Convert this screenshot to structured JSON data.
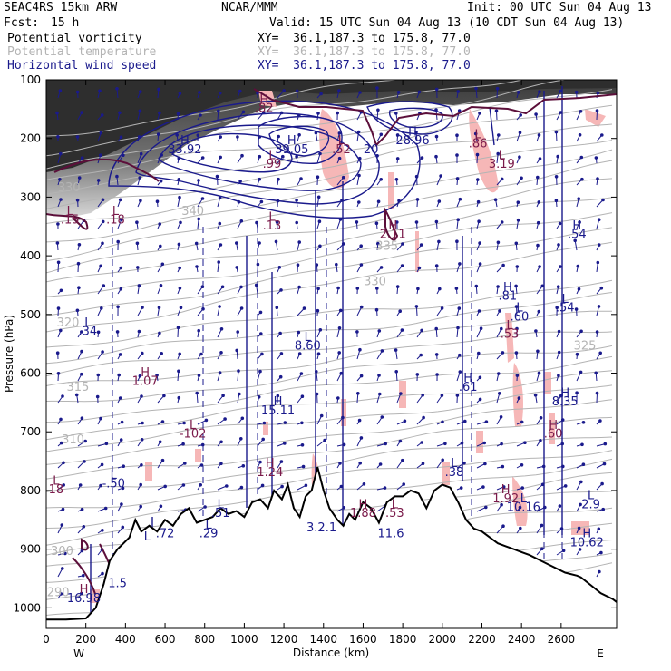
{
  "header": {
    "model": "SEAC4RS 15km ARW",
    "org": "NCAR/MMM",
    "init": "Init: 00 UTC Sun 04 Aug 13",
    "fcst_label": "Fcst:",
    "fcst_value": "15 h",
    "valid": "Valid: 15 UTC Sun 04 Aug 13 (10 CDT Sun 04 Aug 13)"
  },
  "legend": [
    {
      "label": "Potential vorticity",
      "xy": "XY=  36.1,187.3 to 175.8, 77.0",
      "color": "#000000"
    },
    {
      "label": "Potential temperature",
      "xy": "XY=  36.1,187.3 to 175.8, 77.0",
      "color": "#b4b4b4"
    },
    {
      "label": "Horizontal wind speed",
      "xy": "XY=  36.1,187.3 to 175.8, 77.0",
      "color": "#1a1a8c"
    }
  ],
  "chart_data": {
    "type": "cross-section",
    "xlabel": "Distance (km)",
    "ylabel": "Pressure (hPa)",
    "xlim": [
      0,
      2880
    ],
    "ylim": [
      1035,
      100
    ],
    "x_ticks": [
      0,
      200,
      400,
      600,
      800,
      1000,
      1200,
      1400,
      1600,
      1800,
      2000,
      2200,
      2400,
      2600
    ],
    "y_ticks": [
      100,
      200,
      300,
      400,
      500,
      600,
      700,
      800,
      900,
      1000
    ],
    "x_end_labels": {
      "left": "W",
      "right": "E"
    },
    "terrain": [
      [
        0,
        1020
      ],
      [
        100,
        1020
      ],
      [
        200,
        1018
      ],
      [
        250,
        1000
      ],
      [
        290,
        960
      ],
      [
        320,
        920
      ],
      [
        360,
        900
      ],
      [
        390,
        890
      ],
      [
        420,
        880
      ],
      [
        450,
        850
      ],
      [
        480,
        870
      ],
      [
        520,
        860
      ],
      [
        560,
        870
      ],
      [
        600,
        850
      ],
      [
        640,
        860
      ],
      [
        680,
        840
      ],
      [
        720,
        830
      ],
      [
        760,
        855
      ],
      [
        800,
        850
      ],
      [
        840,
        845
      ],
      [
        880,
        830
      ],
      [
        920,
        840
      ],
      [
        960,
        835
      ],
      [
        1000,
        845
      ],
      [
        1040,
        820
      ],
      [
        1080,
        815
      ],
      [
        1120,
        830
      ],
      [
        1150,
        800
      ],
      [
        1190,
        815
      ],
      [
        1220,
        790
      ],
      [
        1250,
        830
      ],
      [
        1280,
        845
      ],
      [
        1310,
        810
      ],
      [
        1340,
        800
      ],
      [
        1370,
        760
      ],
      [
        1400,
        800
      ],
      [
        1430,
        830
      ],
      [
        1470,
        850
      ],
      [
        1500,
        860
      ],
      [
        1530,
        840
      ],
      [
        1560,
        850
      ],
      [
        1600,
        820
      ],
      [
        1640,
        830
      ],
      [
        1680,
        855
      ],
      [
        1720,
        820
      ],
      [
        1760,
        810
      ],
      [
        1800,
        810
      ],
      [
        1840,
        800
      ],
      [
        1880,
        805
      ],
      [
        1920,
        830
      ],
      [
        1960,
        800
      ],
      [
        2000,
        790
      ],
      [
        2040,
        795
      ],
      [
        2080,
        820
      ],
      [
        2120,
        850
      ],
      [
        2160,
        865
      ],
      [
        2200,
        870
      ],
      [
        2240,
        880
      ],
      [
        2280,
        890
      ],
      [
        2320,
        895
      ],
      [
        2360,
        900
      ],
      [
        2400,
        905
      ],
      [
        2440,
        910
      ],
      [
        2500,
        920
      ],
      [
        2560,
        930
      ],
      [
        2620,
        940
      ],
      [
        2680,
        945
      ],
      [
        2700,
        948
      ],
      [
        2745,
        960
      ],
      [
        2800,
        975
      ],
      [
        2860,
        985
      ],
      [
        2880,
        990
      ]
    ],
    "theta_labels": [
      {
        "x": 115,
        "p": 290,
        "text": "330"
      },
      {
        "x": 740,
        "p": 330,
        "text": "340"
      },
      {
        "x": 1660,
        "p": 450,
        "text": "330"
      },
      {
        "x": 1720,
        "p": 390,
        "text": "335"
      },
      {
        "x": 110,
        "p": 520,
        "text": "320"
      },
      {
        "x": 160,
        "p": 630,
        "text": "315"
      },
      {
        "x": 2720,
        "p": 560,
        "text": "325"
      },
      {
        "x": 135,
        "p": 720,
        "text": "310"
      },
      {
        "x": 80,
        "p": 910,
        "text": "300"
      },
      {
        "x": 60,
        "p": 980,
        "text": "290"
      }
    ],
    "labels": [
      {
        "x": 1100,
        "p": 140,
        "text": "H",
        "color": "#7a1a4a"
      },
      {
        "x": 1100,
        "p": 155,
        "text": ".82",
        "color": "#7a1a4a"
      },
      {
        "x": 700,
        "p": 210,
        "text": "H",
        "color": "#1a1a8c"
      },
      {
        "x": 700,
        "p": 225,
        "text": "33.92",
        "color": "#1a1a8c"
      },
      {
        "x": 1240,
        "p": 210,
        "text": "H",
        "color": "#1a1a8c"
      },
      {
        "x": 1240,
        "p": 225,
        "text": "39.05",
        "color": "#1a1a8c"
      },
      {
        "x": 1850,
        "p": 195,
        "text": "H",
        "color": "#1a1a8c"
      },
      {
        "x": 1850,
        "p": 210,
        "text": "28.96",
        "color": "#1a1a8c"
      },
      {
        "x": 2180,
        "p": 200,
        "text": "L",
        "color": "#7a1a4a"
      },
      {
        "x": 2180,
        "p": 215,
        "text": ".86",
        "color": "#7a1a4a"
      },
      {
        "x": 2300,
        "p": 235,
        "text": "L",
        "color": "#7a1a4a"
      },
      {
        "x": 2300,
        "p": 250,
        "text": "3.19",
        "color": "#7a1a4a"
      },
      {
        "x": 1490,
        "p": 210,
        "text": "L",
        "color": "#7a1a4a"
      },
      {
        "x": 1490,
        "p": 225,
        "text": ".52",
        "color": "#7a1a4a"
      },
      {
        "x": 1640,
        "p": 225,
        "text": "20",
        "color": "#1a1a8c"
      },
      {
        "x": 1140,
        "p": 235,
        "text": "L",
        "color": "#7a1a4a"
      },
      {
        "x": 1140,
        "p": 250,
        "text": ".99",
        "color": "#7a1a4a"
      },
      {
        "x": 120,
        "p": 330,
        "text": "L",
        "color": "#7a1a4a"
      },
      {
        "x": 120,
        "p": 345,
        "text": ".15",
        "color": "#7a1a4a"
      },
      {
        "x": 350,
        "p": 330,
        "text": "L",
        "color": "#7a1a4a"
      },
      {
        "x": 350,
        "p": 345,
        "text": ".18",
        "color": "#7a1a4a"
      },
      {
        "x": 1140,
        "p": 340,
        "text": "L",
        "color": "#7a1a4a"
      },
      {
        "x": 1140,
        "p": 355,
        "text": ".13",
        "color": "#7a1a4a"
      },
      {
        "x": 1750,
        "p": 355,
        "text": "H",
        "color": "#7a1a4a"
      },
      {
        "x": 1750,
        "p": 370,
        "text": "2.11",
        "color": "#7a1a4a"
      },
      {
        "x": 2680,
        "p": 355,
        "text": "H",
        "color": "#1a1a8c"
      },
      {
        "x": 2680,
        "p": 370,
        "text": ".54",
        "color": "#1a1a8c"
      },
      {
        "x": 2330,
        "p": 460,
        "text": "H",
        "color": "#1a1a8c"
      },
      {
        "x": 2330,
        "p": 475,
        "text": ".81",
        "color": "#1a1a8c"
      },
      {
        "x": 2620,
        "p": 480,
        "text": "L",
        "color": "#1a1a8c"
      },
      {
        "x": 2620,
        "p": 495,
        "text": ".54",
        "color": "#1a1a8c"
      },
      {
        "x": 2390,
        "p": 495,
        "text": "L",
        "color": "#1a1a8c"
      },
      {
        "x": 2390,
        "p": 510,
        "text": ".60",
        "color": "#1a1a8c"
      },
      {
        "x": 2340,
        "p": 525,
        "text": "L",
        "color": "#7a1a4a"
      },
      {
        "x": 2340,
        "p": 540,
        "text": ".53",
        "color": "#7a1a4a"
      },
      {
        "x": 210,
        "p": 520,
        "text": "L",
        "color": "#1a1a8c"
      },
      {
        "x": 210,
        "p": 535,
        "text": ".34",
        "color": "#1a1a8c"
      },
      {
        "x": 1320,
        "p": 545,
        "text": "L",
        "color": "#1a1a8c"
      },
      {
        "x": 1320,
        "p": 560,
        "text": "8.60",
        "color": "#1a1a8c"
      },
      {
        "x": 500,
        "p": 605,
        "text": "H",
        "color": "#7a1a4a"
      },
      {
        "x": 500,
        "p": 620,
        "text": "1.07",
        "color": "#7a1a4a"
      },
      {
        "x": 2130,
        "p": 615,
        "text": "H",
        "color": "#1a1a8c"
      },
      {
        "x": 2130,
        "p": 630,
        "text": ".61",
        "color": "#1a1a8c"
      },
      {
        "x": 2620,
        "p": 640,
        "text": "H",
        "color": "#1a1a8c"
      },
      {
        "x": 2620,
        "p": 655,
        "text": "8.35",
        "color": "#1a1a8c"
      },
      {
        "x": 1170,
        "p": 655,
        "text": "H",
        "color": "#1a1a8c"
      },
      {
        "x": 1170,
        "p": 670,
        "text": "15.11",
        "color": "#1a1a8c"
      },
      {
        "x": 740,
        "p": 695,
        "text": "L",
        "color": "#7a1a4a"
      },
      {
        "x": 740,
        "p": 710,
        "text": "-102",
        "color": "#7a1a4a"
      },
      {
        "x": 2560,
        "p": 695,
        "text": "H",
        "color": "#7a1a4a"
      },
      {
        "x": 2560,
        "p": 710,
        "text": ".60",
        "color": "#7a1a4a"
      },
      {
        "x": 1130,
        "p": 760,
        "text": "H",
        "color": "#7a1a4a"
      },
      {
        "x": 1130,
        "p": 775,
        "text": "1.24",
        "color": "#7a1a4a"
      },
      {
        "x": 2060,
        "p": 760,
        "text": "L",
        "color": "#1a1a8c"
      },
      {
        "x": 2060,
        "p": 775,
        "text": ".38",
        "color": "#1a1a8c"
      },
      {
        "x": 340,
        "p": 780,
        "text": "L",
        "color": "#1a1a8c"
      },
      {
        "x": 340,
        "p": 795,
        "text": "-.50",
        "color": "#1a1a8c"
      },
      {
        "x": 50,
        "p": 790,
        "text": "L",
        "color": "#7a1a4a"
      },
      {
        "x": 50,
        "p": 805,
        "text": "18",
        "color": "#7a1a4a"
      },
      {
        "x": 2320,
        "p": 805,
        "text": "H",
        "color": "#7a1a4a"
      },
      {
        "x": 2320,
        "p": 820,
        "text": "1.92",
        "color": "#7a1a4a"
      },
      {
        "x": 2410,
        "p": 820,
        "text": "L",
        "color": "#1a1a8c"
      },
      {
        "x": 2410,
        "p": 835,
        "text": "10.16",
        "color": "#1a1a8c"
      },
      {
        "x": 2750,
        "p": 815,
        "text": "L",
        "color": "#1a1a8c"
      },
      {
        "x": 2750,
        "p": 830,
        "text": "2.9",
        "color": "#1a1a8c"
      },
      {
        "x": 880,
        "p": 830,
        "text": "L",
        "color": "#1a1a8c"
      },
      {
        "x": 880,
        "p": 845,
        "text": ".51",
        "color": "#1a1a8c"
      },
      {
        "x": 1600,
        "p": 830,
        "text": "H",
        "color": "#7a1a4a"
      },
      {
        "x": 1600,
        "p": 845,
        "text": "1.88",
        "color": "#7a1a4a"
      },
      {
        "x": 1760,
        "p": 830,
        "text": "L",
        "color": "#7a1a4a"
      },
      {
        "x": 1760,
        "p": 845,
        "text": ".53",
        "color": "#7a1a4a"
      },
      {
        "x": 820,
        "p": 865,
        "text": "L",
        "color": "#1a1a8c"
      },
      {
        "x": 820,
        "p": 880,
        "text": ".29",
        "color": "#1a1a8c"
      },
      {
        "x": 1390,
        "p": 870,
        "text": "3.2.1",
        "color": "#1a1a8c"
      },
      {
        "x": 1740,
        "p": 880,
        "text": "11.6",
        "color": "#1a1a8c"
      },
      {
        "x": 600,
        "p": 880,
        "text": ".72",
        "color": "#1a1a8c"
      },
      {
        "x": 510,
        "p": 885,
        "text": "L",
        "color": "#1a1a8c"
      },
      {
        "x": 2730,
        "p": 880,
        "text": "H",
        "color": "#1a1a8c"
      },
      {
        "x": 2730,
        "p": 895,
        "text": "10.62",
        "color": "#1a1a8c"
      },
      {
        "x": 360,
        "p": 965,
        "text": "1.5",
        "color": "#1a1a8c"
      },
      {
        "x": 190,
        "p": 975,
        "text": "H",
        "color": "#7a1a4a"
      },
      {
        "x": 190,
        "p": 990,
        "text": "16.98",
        "color": "#1a1a8c"
      }
    ]
  }
}
